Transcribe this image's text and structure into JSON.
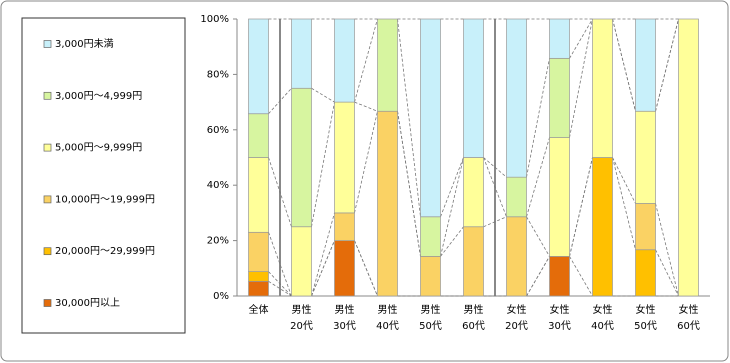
{
  "chart_data": {
    "type": "stacked_bar",
    "categories": [
      "全体",
      "男性\n20代",
      "男性\n30代",
      "男性\n40代",
      "男性\n50代",
      "男性\n60代",
      "女性\n20代",
      "女性\n30代",
      "女性\n40代",
      "女性\n50代",
      "女性\n60代"
    ],
    "series": [
      {
        "name": "30,000円以上",
        "color": "#e46c0a",
        "values": [
          5.3,
          0,
          20,
          0,
          0,
          0,
          0,
          14.3,
          0,
          0,
          0
        ]
      },
      {
        "name": "20,000円～29,999円",
        "color": "#ffc000",
        "values": [
          3.5,
          0,
          0,
          0,
          0,
          0,
          0,
          0,
          50,
          16.7,
          0
        ]
      },
      {
        "name": "10,000円～19,999円",
        "color": "#fad264",
        "values": [
          14.2,
          0,
          10,
          66.7,
          14.3,
          25,
          28.6,
          0,
          0,
          16.7,
          0
        ]
      },
      {
        "name": "5,000円～9,999円",
        "color": "#ffff99",
        "values": [
          27,
          25,
          40,
          0,
          0,
          25,
          0,
          42.9,
          50,
          33.3,
          100
        ]
      },
      {
        "name": "3,000円～4,999円",
        "color": "#d7f5a0",
        "values": [
          15.8,
          50,
          0,
          33.3,
          14.3,
          0,
          14.3,
          28.6,
          0,
          0,
          0
        ]
      },
      {
        "name": "3,000円未満",
        "color": "#c8f0fa",
        "values": [
          34.2,
          25,
          30,
          0,
          71.4,
          50,
          57.1,
          14.2,
          0,
          33.3,
          0
        ]
      }
    ],
    "ylim": [
      0,
      100
    ],
    "yticks": [
      {
        "value": 0,
        "label": "0%"
      },
      {
        "value": 20,
        "label": "20%"
      },
      {
        "value": 40,
        "label": "40%"
      },
      {
        "value": 60,
        "label": "60%"
      },
      {
        "value": 80,
        "label": "80%"
      },
      {
        "value": 100,
        "label": "100%"
      }
    ],
    "grid": false
  }
}
